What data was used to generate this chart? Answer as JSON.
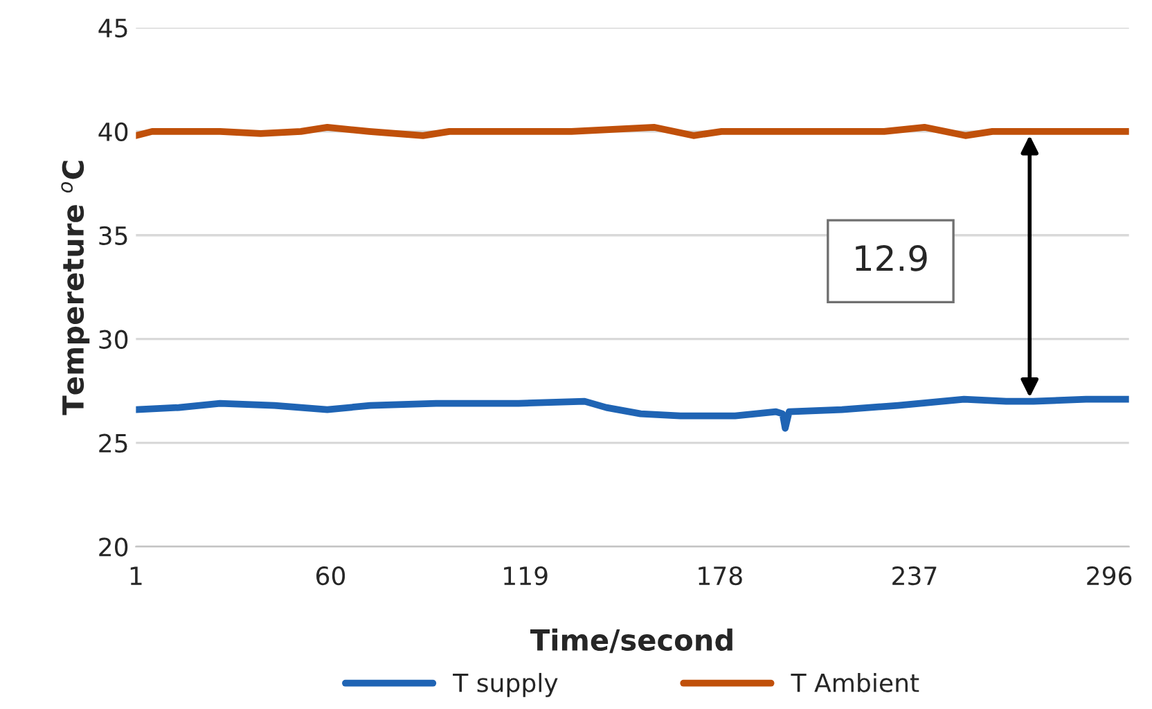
{
  "chart_data": {
    "type": "line",
    "xlabel": "Time/second",
    "ylabel": "Tempereture $^{o}$C",
    "xlim": [
      1,
      302
    ],
    "xticks": [
      1,
      60,
      119,
      178,
      237,
      296
    ],
    "ylim": [
      20,
      45
    ],
    "yticks": [
      20,
      25,
      30,
      35,
      40,
      45
    ],
    "grid": "y",
    "legend": "bottom",
    "line_style": "solid",
    "marker": "none",
    "annotations": [
      "12.9"
    ],
    "series": [
      {
        "name": "T supply",
        "color": "#1f64b4",
        "x": [
          1,
          14,
          26.5,
          43,
          59,
          72,
          92,
          117,
          137,
          143.6,
          154,
          166,
          182.6,
          195,
          197,
          197.8,
          199,
          215,
          232,
          252,
          264.8,
          273,
          289,
          302
        ],
        "values": [
          26.6,
          26.7,
          26.9,
          26.8,
          26.6,
          26.8,
          26.9,
          26.9,
          27.0,
          26.7,
          26.4,
          26.3,
          26.3,
          26.5,
          26.4,
          25.7,
          26.5,
          26.6,
          26.8,
          27.1,
          27.0,
          27.0,
          27.1,
          27.1
        ]
      },
      {
        "name": "T Ambient",
        "color": "#c0500a",
        "x": [
          1,
          5.9,
          26.5,
          38.8,
          51,
          59,
          71.7,
          88,
          96,
          133,
          158,
          170,
          178.5,
          207,
          227.8,
          240,
          252.4,
          260.6,
          273,
          302
        ],
        "values": [
          39.8,
          40.0,
          40.0,
          39.9,
          40.0,
          40.2,
          40.0,
          39.8,
          40.0,
          40.0,
          40.2,
          39.8,
          40.0,
          40.0,
          40.0,
          40.2,
          39.8,
          40.0,
          40.0,
          40.0
        ]
      }
    ]
  }
}
